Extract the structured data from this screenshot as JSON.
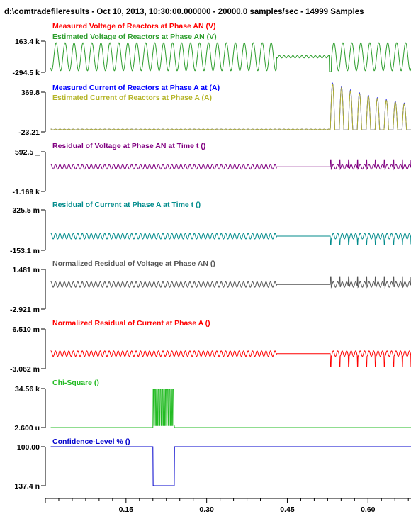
{
  "header": "d:\\comtradefileresults - Oct 10, 2013, 10:30:00.000000 - 20000.0 samples/sec - 14999 Samples",
  "chart_data": {
    "type": "line",
    "x_ticks": [
      0.15,
      0.3,
      0.45,
      0.6
    ],
    "x_tick_labels": [
      "0.15",
      "0.30",
      "0.45",
      "0.60"
    ],
    "xlim": [
      0.0,
      0.68
    ],
    "panels": [
      {
        "top_label": "163.4 k",
        "bottom_label": "-294.5 k",
        "series": [
          {
            "name": "Measured Voltage of Reactors at Phase AN  (V)",
            "color": "#ff0000",
            "values": []
          },
          {
            "name": "Estimated Voltage of Reactors at Phase AN  (V)",
            "color": "#2e9e2e",
            "values": []
          }
        ],
        "description": "60 Hz sinusoid near full scale; collapses to small ripple at ~0.43-0.53 s with spike at 0.48 s"
      },
      {
        "top_label": "369.8",
        "bottom_label": "-23.21",
        "series": [
          {
            "name": "Measured Current of Reactors at Phase A at  (A)",
            "color": "#0000ff",
            "values": []
          },
          {
            "name": "Estimated Current of Reactors at Phase A  (A)",
            "color": "#b5b52a",
            "values": []
          }
        ],
        "description": "flat near zero until 0.53 s, then decaying half-wave pulses"
      },
      {
        "top_label": "592.5 _",
        "bottom_label": "-1.169 k",
        "series": [
          {
            "name": "Residual of Voltage at Phase AN at Time t ()",
            "color": "#800080",
            "values": []
          }
        ]
      },
      {
        "top_label": "325.5 m",
        "bottom_label": "-153.1 m",
        "series": [
          {
            "name": "Residual of Current at Phase A at Time t ()",
            "color": "#008b8b",
            "values": []
          }
        ]
      },
      {
        "top_label": "1.481 m",
        "bottom_label": "-2.921 m",
        "series": [
          {
            "name": "Normalized Residual of Voltage at Phase AN  ()",
            "color": "#555555",
            "values": []
          }
        ]
      },
      {
        "top_label": "6.510 m",
        "bottom_label": "-3.062 m",
        "series": [
          {
            "name": "Normalized Residual of Current at Phase A  ()",
            "color": "#ff0000",
            "values": []
          }
        ]
      },
      {
        "top_label": "34.56 k",
        "bottom_label": "2.600 u",
        "series": [
          {
            "name": "Chi-Square ()",
            "color": "#22bb22",
            "values": []
          }
        ],
        "description": "zero except burst of spikes between 0.20 and 0.24 s"
      },
      {
        "top_label": "100.00",
        "bottom_label": "137.4 n",
        "series": [
          {
            "name": "Confidence-Level % ()",
            "color": "#0000cc",
            "values": []
          }
        ],
        "description": "100 except drops to ~0 between 0.20 and 0.24 s"
      }
    ]
  }
}
